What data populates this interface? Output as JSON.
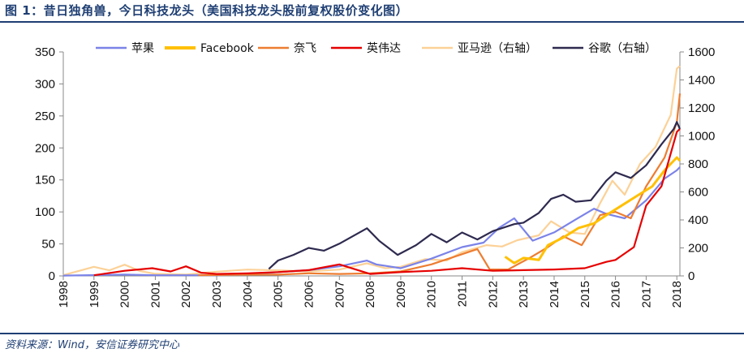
{
  "title": "图 1：昔日独角兽，今日科技龙头（美国科技龙头股前复权股价变化图）",
  "source": "资料来源：Wind，安信证券研究中心",
  "chart_data": {
    "type": "line",
    "y_left": {
      "min": 0,
      "max": 350,
      "ticks": [
        0,
        50,
        100,
        150,
        200,
        250,
        300,
        350
      ]
    },
    "y_right": {
      "min": 0,
      "max": 1600,
      "ticks": [
        0,
        200,
        400,
        600,
        800,
        1000,
        1200,
        1400,
        1600
      ]
    },
    "x": {
      "min": 1998,
      "max": 2018.1,
      "ticks": [
        "1998",
        "1999",
        "2000",
        "2001",
        "2002",
        "2003",
        "2004",
        "2005",
        "2006",
        "2007",
        "2008",
        "2009",
        "2010",
        "2011",
        "2012",
        "2013",
        "2014",
        "2015",
        "2016",
        "2017",
        "2018"
      ]
    },
    "legend": "top",
    "series": [
      {
        "name": "苹果",
        "axis": "left",
        "color": "#7b83e8",
        "points": [
          [
            1998,
            0.5
          ],
          [
            2000,
            2
          ],
          [
            2001,
            1
          ],
          [
            2003,
            1
          ],
          [
            2004,
            2
          ],
          [
            2005,
            6
          ],
          [
            2006,
            9
          ],
          [
            2007,
            15
          ],
          [
            2007.9,
            24
          ],
          [
            2008.2,
            18
          ],
          [
            2009,
            12
          ],
          [
            2010,
            27
          ],
          [
            2011,
            45
          ],
          [
            2011.7,
            52
          ],
          [
            2012.2,
            75
          ],
          [
            2012.7,
            90
          ],
          [
            2013.3,
            55
          ],
          [
            2014,
            68
          ],
          [
            2014.7,
            88
          ],
          [
            2015.3,
            105
          ],
          [
            2015.7,
            97
          ],
          [
            2016.3,
            90
          ],
          [
            2017,
            118
          ],
          [
            2017.6,
            152
          ],
          [
            2018,
            165
          ],
          [
            2018.1,
            170
          ]
        ]
      },
      {
        "name": "Facebook",
        "axis": "left",
        "color": "#ffc000",
        "points": [
          [
            2012.4,
            30
          ],
          [
            2012.7,
            20
          ],
          [
            2013,
            28
          ],
          [
            2013.5,
            25
          ],
          [
            2013.8,
            48
          ],
          [
            2014.3,
            60
          ],
          [
            2014.8,
            75
          ],
          [
            2015.3,
            82
          ],
          [
            2015.7,
            95
          ],
          [
            2016.2,
            110
          ],
          [
            2016.7,
            125
          ],
          [
            2017.2,
            140
          ],
          [
            2017.6,
            165
          ],
          [
            2018,
            185
          ],
          [
            2018.1,
            180
          ]
        ]
      },
      {
        "name": "奈飞",
        "axis": "left",
        "color": "#ed7d31",
        "points": [
          [
            2002.4,
            1
          ],
          [
            2004,
            2
          ],
          [
            2005,
            2
          ],
          [
            2006,
            4
          ],
          [
            2007,
            3
          ],
          [
            2008,
            4
          ],
          [
            2009,
            7
          ],
          [
            2010,
            18
          ],
          [
            2011.5,
            42
          ],
          [
            2011.9,
            10
          ],
          [
            2012.5,
            10
          ],
          [
            2013.2,
            28
          ],
          [
            2013.8,
            45
          ],
          [
            2014.3,
            62
          ],
          [
            2014.9,
            48
          ],
          [
            2015.5,
            95
          ],
          [
            2016,
            100
          ],
          [
            2016.5,
            90
          ],
          [
            2017,
            140
          ],
          [
            2017.6,
            185
          ],
          [
            2018,
            240
          ],
          [
            2018.1,
            285
          ]
        ]
      },
      {
        "name": "英伟达",
        "axis": "left",
        "color": "#e60000",
        "points": [
          [
            1999,
            1
          ],
          [
            2000,
            8
          ],
          [
            2000.9,
            12
          ],
          [
            2001.5,
            7
          ],
          [
            2002,
            15
          ],
          [
            2002.5,
            5
          ],
          [
            2003,
            3
          ],
          [
            2004,
            4
          ],
          [
            2005,
            6
          ],
          [
            2006,
            9
          ],
          [
            2007,
            18
          ],
          [
            2008,
            3
          ],
          [
            2009,
            6
          ],
          [
            2010,
            8
          ],
          [
            2011,
            12
          ],
          [
            2012,
            8
          ],
          [
            2013,
            9
          ],
          [
            2014,
            10
          ],
          [
            2015,
            12
          ],
          [
            2015.7,
            22
          ],
          [
            2016,
            25
          ],
          [
            2016.6,
            45
          ],
          [
            2017,
            110
          ],
          [
            2017.5,
            140
          ],
          [
            2018,
            225
          ],
          [
            2018.1,
            230
          ]
        ]
      },
      {
        "name": "亚马逊（右轴）",
        "axis": "right",
        "color": "#fcd197",
        "points": [
          [
            1998,
            5
          ],
          [
            1999,
            65
          ],
          [
            1999.5,
            40
          ],
          [
            2000,
            80
          ],
          [
            2000.5,
            35
          ],
          [
            2001,
            15
          ],
          [
            2002,
            10
          ],
          [
            2003,
            30
          ],
          [
            2004,
            45
          ],
          [
            2005,
            40
          ],
          [
            2006,
            32
          ],
          [
            2007,
            45
          ],
          [
            2007.9,
            90
          ],
          [
            2008.5,
            55
          ],
          [
            2009,
            65
          ],
          [
            2009.8,
            120
          ],
          [
            2010.5,
            110
          ],
          [
            2011,
            170
          ],
          [
            2011.8,
            220
          ],
          [
            2012.3,
            210
          ],
          [
            2012.8,
            255
          ],
          [
            2013.5,
            290
          ],
          [
            2013.9,
            390
          ],
          [
            2014.5,
            310
          ],
          [
            2015,
            300
          ],
          [
            2015.5,
            520
          ],
          [
            2015.9,
            680
          ],
          [
            2016.3,
            580
          ],
          [
            2016.8,
            800
          ],
          [
            2017.3,
            920
          ],
          [
            2017.8,
            1150
          ],
          [
            2018,
            1480
          ],
          [
            2018.1,
            1500
          ]
        ]
      },
      {
        "name": "谷歌（右轴）",
        "axis": "right",
        "color": "#2e2a4f",
        "points": [
          [
            2004.7,
            50
          ],
          [
            2005,
            110
          ],
          [
            2005.5,
            150
          ],
          [
            2006,
            200
          ],
          [
            2006.5,
            180
          ],
          [
            2007,
            230
          ],
          [
            2007.9,
            340
          ],
          [
            2008.3,
            250
          ],
          [
            2008.9,
            150
          ],
          [
            2009.5,
            220
          ],
          [
            2010,
            300
          ],
          [
            2010.5,
            240
          ],
          [
            2011,
            310
          ],
          [
            2011.5,
            260
          ],
          [
            2012,
            320
          ],
          [
            2012.7,
            370
          ],
          [
            2013,
            380
          ],
          [
            2013.5,
            450
          ],
          [
            2013.9,
            550
          ],
          [
            2014.3,
            580
          ],
          [
            2014.7,
            530
          ],
          [
            2015.2,
            540
          ],
          [
            2015.7,
            680
          ],
          [
            2016,
            740
          ],
          [
            2016.5,
            700
          ],
          [
            2017,
            790
          ],
          [
            2017.5,
            940
          ],
          [
            2017.9,
            1050
          ],
          [
            2018,
            1100
          ],
          [
            2018.1,
            1050
          ]
        ]
      }
    ]
  }
}
